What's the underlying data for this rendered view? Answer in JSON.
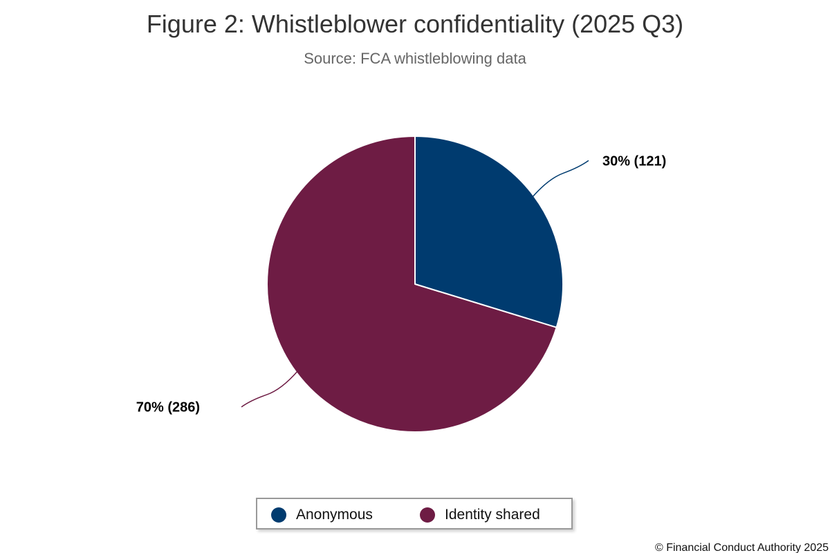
{
  "chart_data": {
    "type": "pie",
    "title": "Figure 2: Whistleblower confidentiality (2025 Q3)",
    "subtitle": "Source: FCA whistleblowing data",
    "slices": [
      {
        "name": "Anonymous",
        "value": 121,
        "percent": 30,
        "label": "30% (121)",
        "color": "#003b6f"
      },
      {
        "name": "Identity shared",
        "value": 286,
        "percent": 70,
        "label": "70% (286)",
        "color": "#6e1c44"
      }
    ],
    "legend": {
      "placement": "bottom-center",
      "items": [
        "Anonymous",
        "Identity shared"
      ]
    },
    "credits": "© Financial Conduct Authority 2025"
  }
}
